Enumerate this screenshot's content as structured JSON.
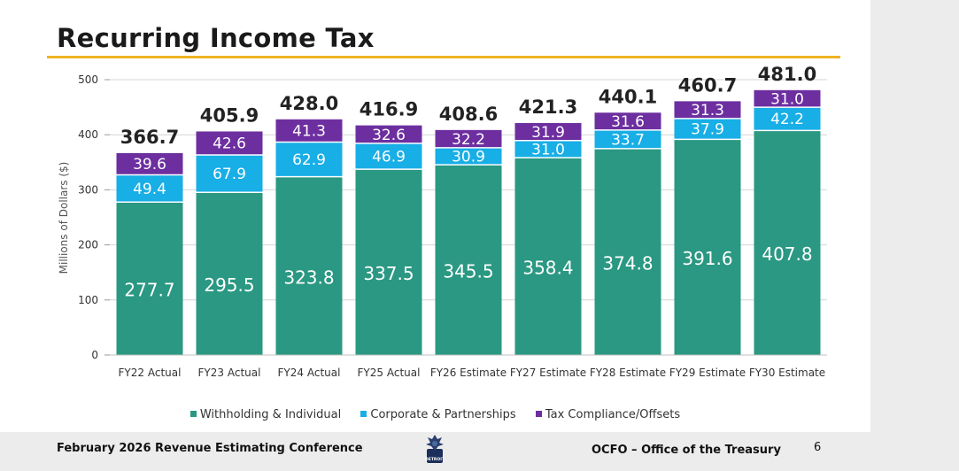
{
  "slide": {
    "title": "Recurring Income Tax",
    "page_number": "6"
  },
  "footer": {
    "left_text": "February 2026 Revenue Estimating Conference",
    "right_text": "OCFO – Office of the Treasury",
    "logo_text": "DETROIT"
  },
  "colors": {
    "withholding": "#2a9882",
    "corporate": "#18aee6",
    "compliance": "#6d2fa0",
    "title_rule": "#f0b323"
  },
  "chart_data": {
    "type": "bar",
    "stacked": true,
    "title": "",
    "xlabel": "",
    "ylabel": "Millions of Dollars ($)",
    "ylim": [
      0,
      500
    ],
    "yticks": [
      0,
      100,
      200,
      300,
      400,
      500
    ],
    "grid": true,
    "legend_position": "bottom",
    "categories": [
      "FY22 Actual",
      "FY23 Actual",
      "FY24 Actual",
      "FY25 Actual",
      "FY26 Estimate",
      "FY27 Estimate",
      "FY28 Estimate",
      "FY29 Estimate",
      "FY30 Estimate"
    ],
    "series": [
      {
        "name": "Withholding & Individual",
        "values": [
          277.7,
          295.5,
          323.8,
          337.5,
          345.5,
          358.4,
          374.8,
          391.6,
          407.8
        ]
      },
      {
        "name": "Corporate & Partnerships",
        "values": [
          49.4,
          67.9,
          62.9,
          46.9,
          30.9,
          31.0,
          33.7,
          37.9,
          42.2
        ]
      },
      {
        "name": "Tax Compliance/Offsets",
        "values": [
          39.6,
          42.6,
          41.3,
          32.6,
          32.2,
          31.9,
          31.6,
          31.3,
          31.0
        ]
      }
    ],
    "totals": [
      366.7,
      405.9,
      428.0,
      416.9,
      408.6,
      421.3,
      440.1,
      460.7,
      481.0
    ],
    "value_labels": [
      [
        "277.7",
        "295.5",
        "323.8",
        "337.5",
        "345.5",
        "358.4",
        "374.8",
        "391.6",
        "407.8"
      ],
      [
        "49.4",
        "67.9",
        "62.9",
        "46.9",
        "30.9",
        "31.0",
        "33.7",
        "37.9",
        "42.2"
      ],
      [
        "39.6",
        "42.6",
        "41.3",
        "32.6",
        "32.2",
        "31.9",
        "31.6",
        "31.3",
        "31.0"
      ]
    ],
    "total_labels": [
      "366.7",
      "405.9",
      "428.0",
      "416.9",
      "408.6",
      "421.3",
      "440.1",
      "460.7",
      "481.0"
    ]
  }
}
